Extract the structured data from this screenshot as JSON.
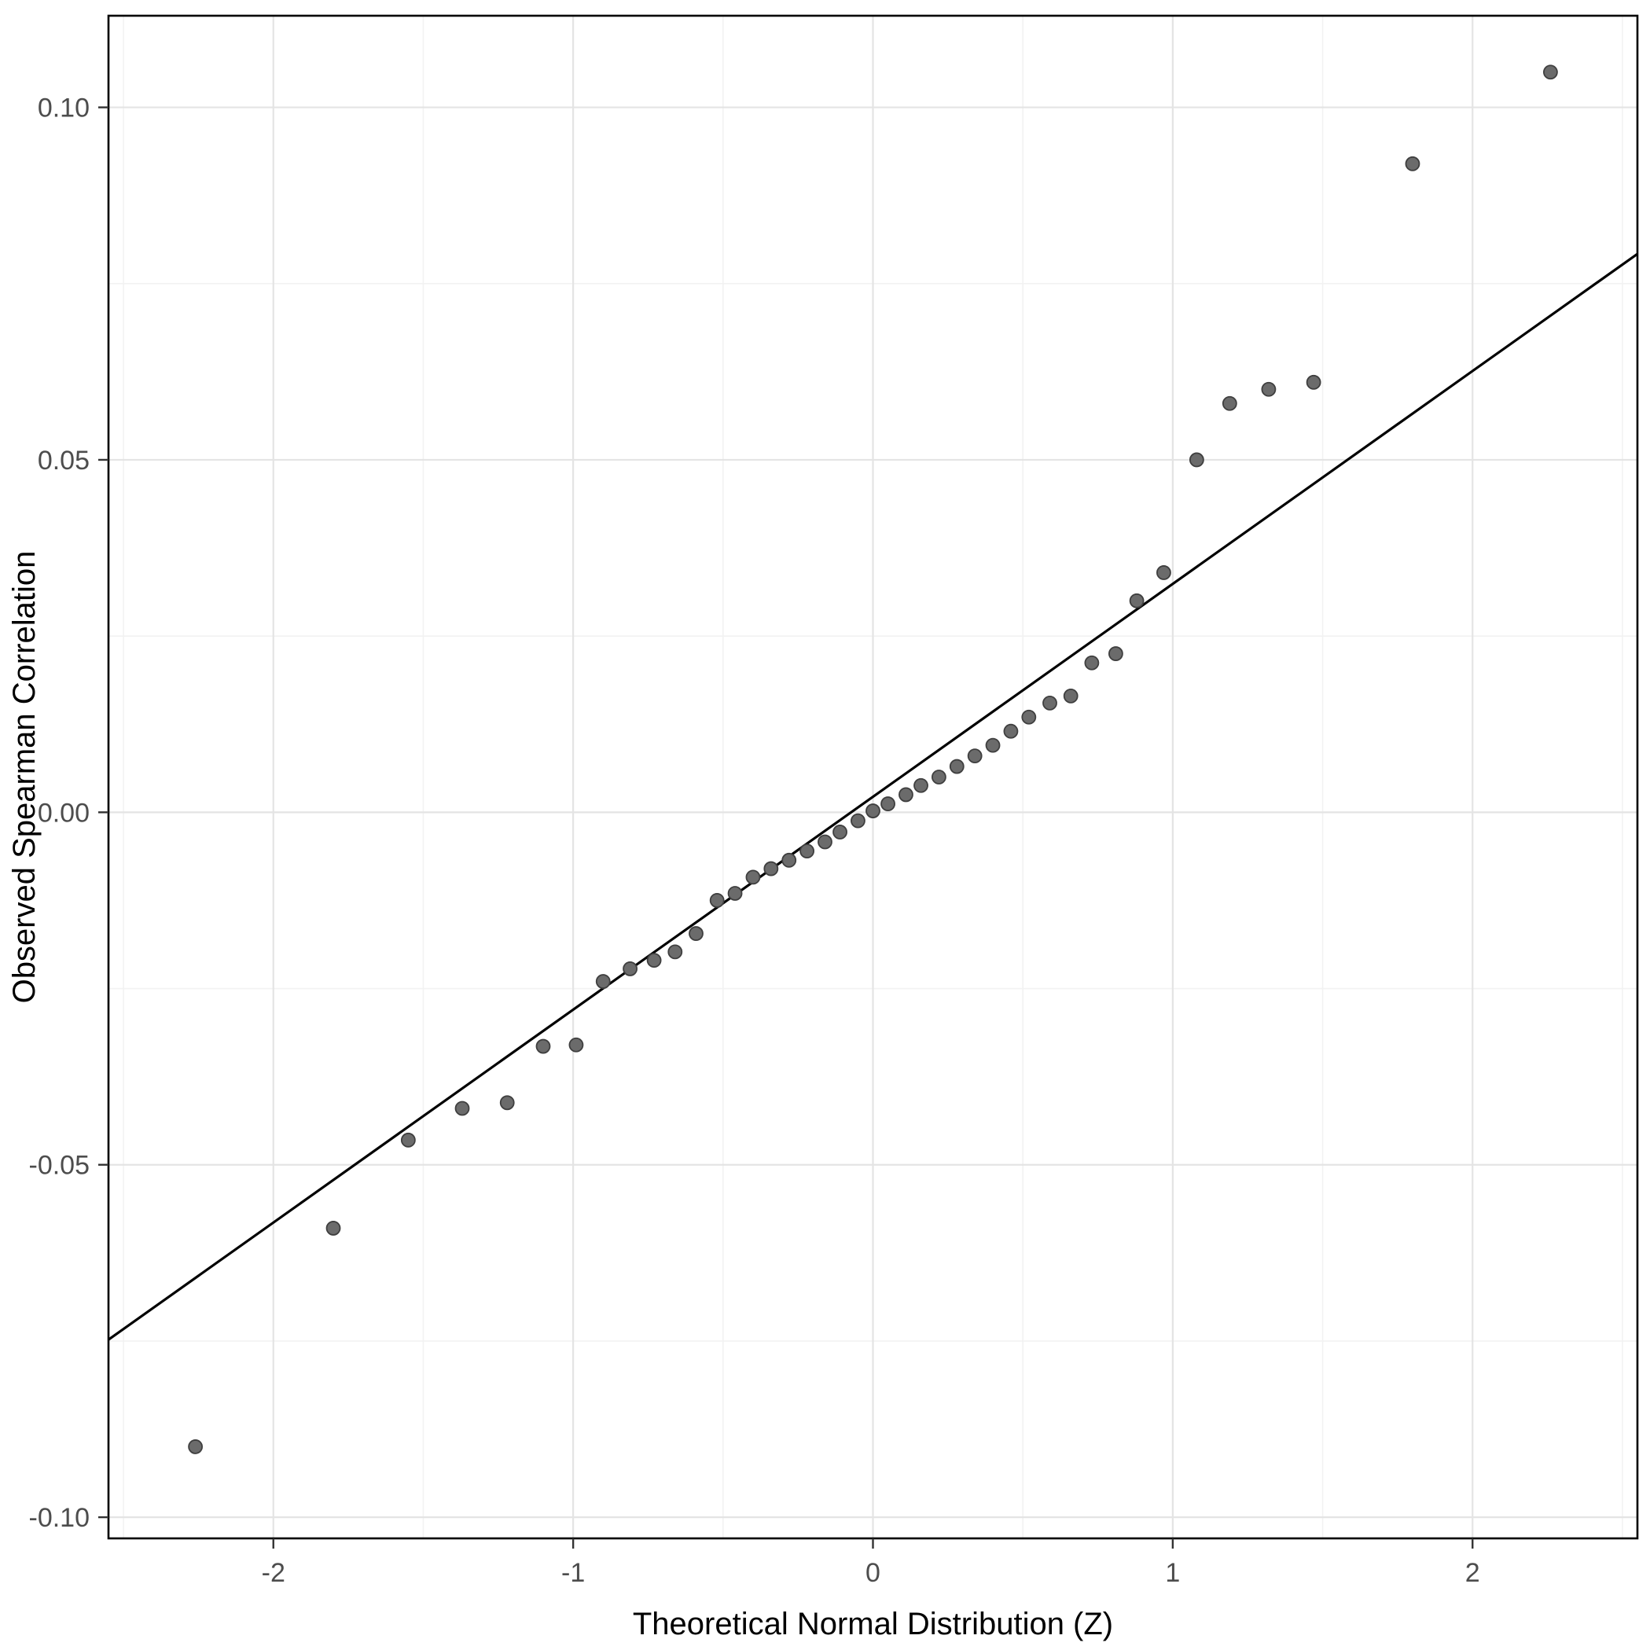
{
  "chart_data": {
    "type": "scatter",
    "title": "",
    "xlabel": "Theoretical Normal Distribution (Z)",
    "ylabel": "Observed Spearman Correlation",
    "xlim": [
      -2.55,
      2.55
    ],
    "ylim": [
      -0.103,
      0.113
    ],
    "grid": true,
    "legend": "none",
    "x_ticks": {
      "values": [
        -2,
        -1,
        0,
        1,
        2
      ],
      "labels": [
        "-2",
        "-1",
        "0",
        "1",
        "2"
      ]
    },
    "y_ticks": {
      "values": [
        -0.1,
        -0.05,
        0.0,
        0.05,
        0.1
      ],
      "labels": [
        "-0.10",
        "-0.05",
        "0.00",
        "0.05",
        "0.10"
      ]
    },
    "x_minor": [
      -2.5,
      -1.5,
      -0.5,
      0.5,
      1.5,
      2.5
    ],
    "y_minor": [
      -0.075,
      -0.025,
      0.025,
      0.075
    ],
    "points": [
      [
        -2.26,
        -0.09
      ],
      [
        -1.8,
        -0.059
      ],
      [
        -1.55,
        -0.0465
      ],
      [
        -1.37,
        -0.042
      ],
      [
        -1.22,
        -0.0412
      ],
      [
        -1.1,
        -0.0332
      ],
      [
        -0.99,
        -0.033
      ],
      [
        -0.9,
        -0.024
      ],
      [
        -0.81,
        -0.0222
      ],
      [
        -0.73,
        -0.021
      ],
      [
        -0.66,
        -0.0198
      ],
      [
        -0.59,
        -0.0172
      ],
      [
        -0.52,
        -0.0125
      ],
      [
        -0.46,
        -0.0115
      ],
      [
        -0.4,
        -0.0092
      ],
      [
        -0.34,
        -0.008
      ],
      [
        -0.28,
        -0.0068
      ],
      [
        -0.22,
        -0.0055
      ],
      [
        -0.16,
        -0.0042
      ],
      [
        -0.11,
        -0.0028
      ],
      [
        -0.05,
        -0.0012
      ],
      [
        0.0,
        0.0002
      ],
      [
        0.05,
        0.0012
      ],
      [
        0.11,
        0.0025
      ],
      [
        0.16,
        0.0038
      ],
      [
        0.22,
        0.005
      ],
      [
        0.28,
        0.0065
      ],
      [
        0.34,
        0.008
      ],
      [
        0.4,
        0.0095
      ],
      [
        0.46,
        0.0115
      ],
      [
        0.52,
        0.0135
      ],
      [
        0.59,
        0.0155
      ],
      [
        0.66,
        0.0165
      ],
      [
        0.73,
        0.0212
      ],
      [
        0.81,
        0.0225
      ],
      [
        0.88,
        0.03
      ],
      [
        0.97,
        0.034
      ],
      [
        1.08,
        0.05
      ],
      [
        1.19,
        0.058
      ],
      [
        1.32,
        0.06
      ],
      [
        1.47,
        0.061
      ],
      [
        1.8,
        0.092
      ],
      [
        2.26,
        0.105
      ]
    ],
    "reference_line": {
      "slope": 0.0302,
      "intercept": 0.0022
    },
    "style": {
      "background": "#ffffff",
      "panel_border": "#000000",
      "grid_major": "#e4e4e4",
      "grid_minor": "#f2f2f2",
      "point_fill": "#6b6b6b",
      "point_stroke": "#3f3f3f",
      "ref_line_color": "#000000",
      "tick_color": "#333333"
    }
  }
}
